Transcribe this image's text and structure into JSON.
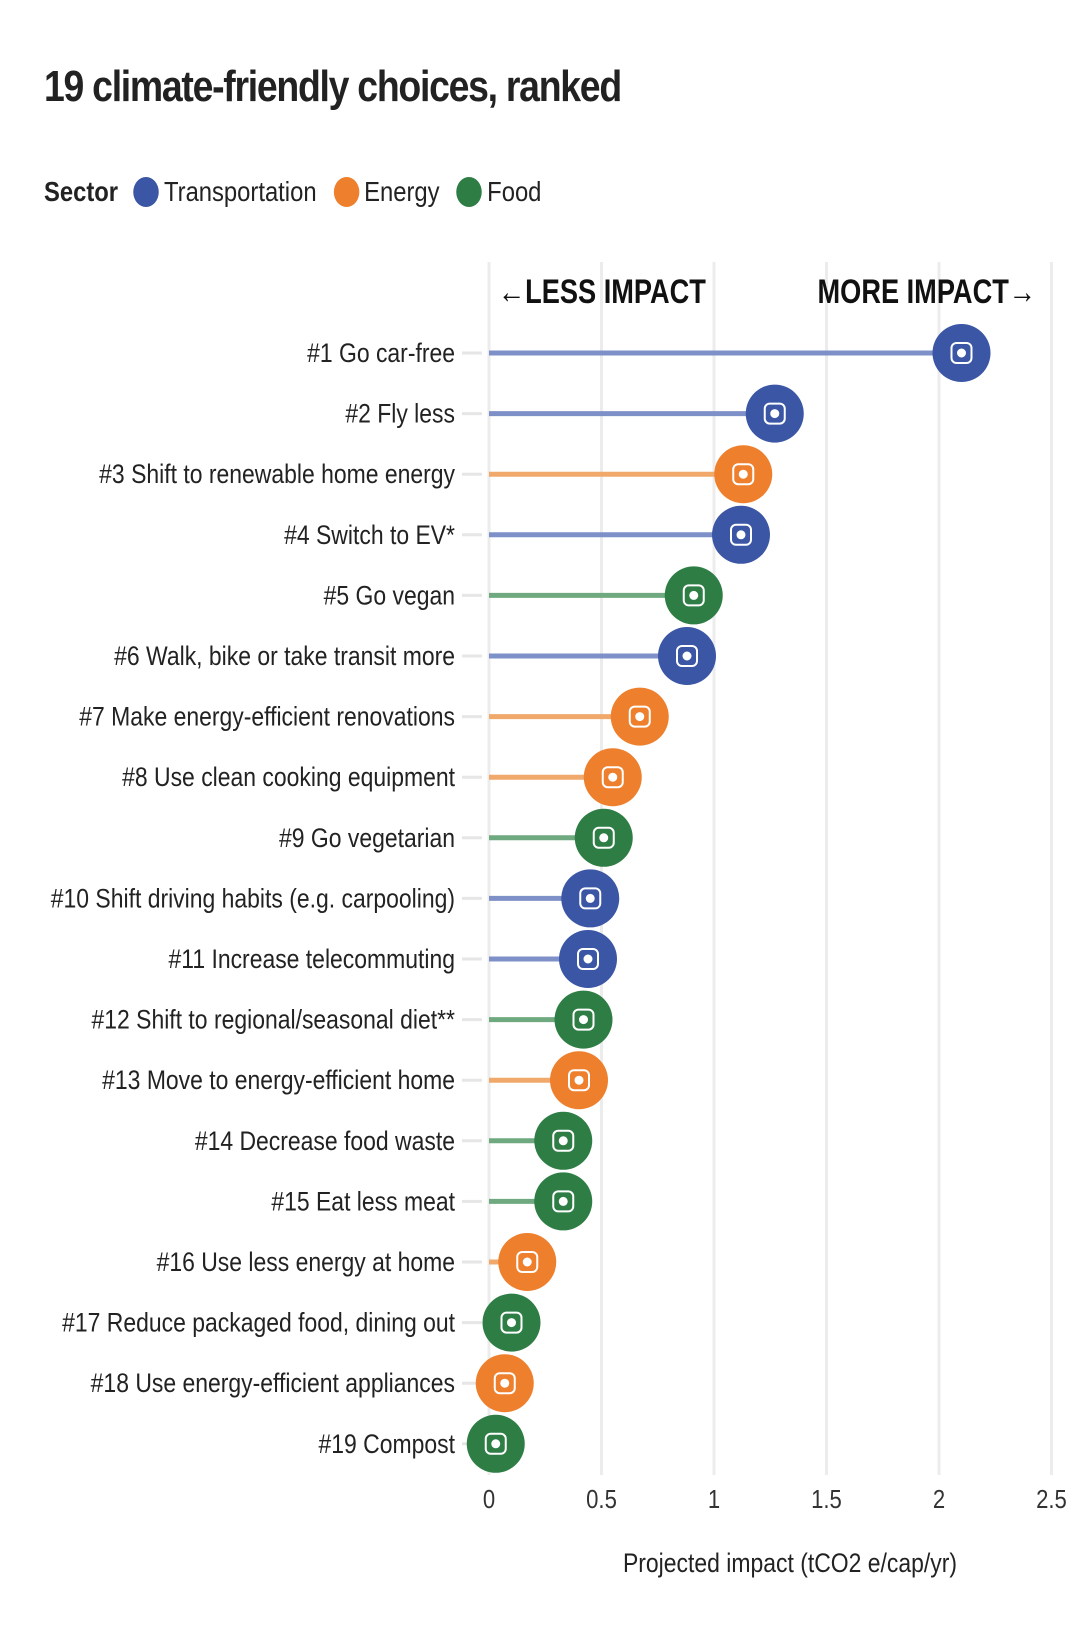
{
  "chart_data": {
    "type": "lollipop",
    "title": "19 climate-friendly choices, ranked",
    "legend_title": "Sector",
    "legend": [
      {
        "name": "Transportation",
        "color": "#3a56a5",
        "line_color": "#7d90c8"
      },
      {
        "name": "Energy",
        "color": "#ee7f2d",
        "line_color": "#f0a96b"
      },
      {
        "name": "Food",
        "color": "#2e7d45",
        "line_color": "#6fa97f"
      }
    ],
    "legend_placement": "top-left",
    "annotations": {
      "less": "←LESS IMPACT",
      "more": "MORE IMPACT→"
    },
    "xlabel": "Projected impact (tCO2 e/cap/yr)",
    "xlim": [
      0,
      2.5
    ],
    "xticks": [
      0,
      0.5,
      1,
      1.5,
      2,
      2.5
    ],
    "xtick_labels": [
      "0",
      "0.5",
      "1",
      "1.5",
      "2",
      "2.5"
    ],
    "grid": "vertical",
    "items": [
      {
        "label": "#1 Go car-free",
        "sector": "Transportation",
        "value": 2.1,
        "icon": "walking-person-icon"
      },
      {
        "label": "#2 Fly less",
        "sector": "Transportation",
        "value": 1.27,
        "icon": "train-icon"
      },
      {
        "label": "#3 Shift to renewable home energy",
        "sector": "Energy",
        "value": 1.13,
        "icon": "solar-panel-icon"
      },
      {
        "label": "#4 Switch to EV*",
        "sector": "Transportation",
        "value": 1.12,
        "icon": "electric-car-icon"
      },
      {
        "label": "#5 Go vegan",
        "sector": "Food",
        "value": 0.91,
        "icon": "leafy-vegetable-icon"
      },
      {
        "label": "#6 Walk, bike or take transit more",
        "sector": "Transportation",
        "value": 0.88,
        "icon": "bicycle-icon"
      },
      {
        "label": "#7 Make energy-efficient renovations",
        "sector": "Energy",
        "value": 0.67,
        "icon": "house-tools-icon"
      },
      {
        "label": "#8 Use clean cooking equipment",
        "sector": "Energy",
        "value": 0.55,
        "icon": "cooking-pot-icon"
      },
      {
        "label": "#9 Go vegetarian",
        "sector": "Food",
        "value": 0.51,
        "icon": "milk-carrot-icon"
      },
      {
        "label": "#10 Shift driving habits (e.g. carpooling)",
        "sector": "Transportation",
        "value": 0.45,
        "icon": "carpool-icon"
      },
      {
        "label": "#11 Increase telecommuting",
        "sector": "Transportation",
        "value": 0.44,
        "icon": "home-office-icon"
      },
      {
        "label": "#12 Shift to regional/seasonal diet**",
        "sector": "Food",
        "value": 0.42,
        "icon": "regional-produce-icon"
      },
      {
        "label": "#13 Move to energy-efficient home",
        "sector": "Energy",
        "value": 0.4,
        "icon": "eco-house-icon"
      },
      {
        "label": "#14 Decrease food waste",
        "sector": "Food",
        "value": 0.33,
        "icon": "plate-cutlery-icon"
      },
      {
        "label": "#15 Eat less meat",
        "sector": "Food",
        "value": 0.33,
        "icon": "meat-icon"
      },
      {
        "label": "#16 Use less energy at home",
        "sector": "Energy",
        "value": 0.17,
        "icon": "lightbulb-icon"
      },
      {
        "label": "#17 Reduce packaged food, dining out",
        "sector": "Food",
        "value": 0.1,
        "icon": "restaurant-icon"
      },
      {
        "label": "#18 Use energy-efficient appliances",
        "sector": "Energy",
        "value": 0.07,
        "icon": "appliances-icon"
      },
      {
        "label": "#19 Compost",
        "sector": "Food",
        "value": 0.03,
        "icon": "apple-core-icon"
      }
    ]
  }
}
